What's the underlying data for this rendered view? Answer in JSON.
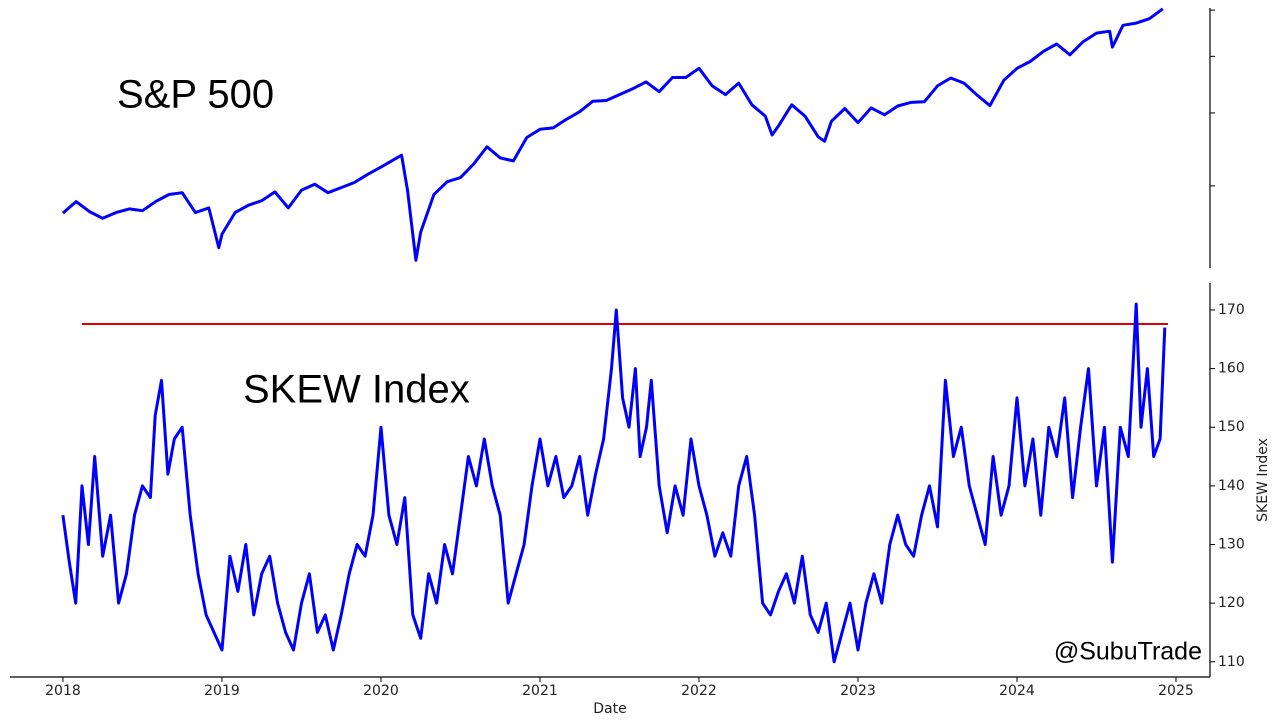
{
  "chart_data": [
    {
      "type": "line",
      "title": "S&P 500",
      "color": "#0000ff",
      "log_scale": true,
      "xlim": [
        2017.667,
        2025.214
      ],
      "ylim": [
        2170,
        6050
      ],
      "yticks": [
        3000,
        4000,
        5000,
        6000
      ],
      "x": [
        2018.0,
        2018.083,
        2018.167,
        2018.25,
        2018.333,
        2018.417,
        2018.5,
        2018.583,
        2018.667,
        2018.75,
        2018.833,
        2018.917,
        2018.98,
        2019.0,
        2019.083,
        2019.167,
        2019.25,
        2019.333,
        2019.417,
        2019.5,
        2019.583,
        2019.667,
        2019.75,
        2019.833,
        2019.917,
        2020.0,
        2020.083,
        2020.13,
        2020.167,
        2020.22,
        2020.25,
        2020.333,
        2020.417,
        2020.5,
        2020.583,
        2020.667,
        2020.75,
        2020.833,
        2020.917,
        2021.0,
        2021.083,
        2021.167,
        2021.25,
        2021.333,
        2021.417,
        2021.5,
        2021.583,
        2021.667,
        2021.75,
        2021.833,
        2021.917,
        2022.0,
        2022.083,
        2022.167,
        2022.25,
        2022.333,
        2022.417,
        2022.46,
        2022.5,
        2022.583,
        2022.667,
        2022.75,
        2022.79,
        2022.833,
        2022.917,
        2023.0,
        2023.083,
        2023.167,
        2023.25,
        2023.333,
        2023.417,
        2023.5,
        2023.583,
        2023.667,
        2023.75,
        2023.83,
        2023.917,
        2024.0,
        2024.083,
        2024.167,
        2024.25,
        2024.333,
        2024.417,
        2024.5,
        2024.583,
        2024.6,
        2024.667,
        2024.75,
        2024.833,
        2024.917
      ],
      "values": [
        2695,
        2820,
        2710,
        2640,
        2700,
        2740,
        2720,
        2820,
        2900,
        2920,
        2700,
        2750,
        2351,
        2480,
        2700,
        2780,
        2830,
        2930,
        2750,
        2950,
        3020,
        2920,
        2980,
        3040,
        3140,
        3230,
        3330,
        3386,
        2950,
        2237,
        2500,
        2900,
        3050,
        3100,
        3270,
        3500,
        3350,
        3310,
        3630,
        3750,
        3770,
        3900,
        4020,
        4190,
        4200,
        4300,
        4400,
        4520,
        4350,
        4600,
        4600,
        4770,
        4450,
        4300,
        4500,
        4130,
        3950,
        3667,
        3800,
        4130,
        3950,
        3640,
        3577,
        3870,
        4070,
        3850,
        4080,
        3970,
        4110,
        4170,
        4180,
        4450,
        4590,
        4500,
        4290,
        4117,
        4550,
        4770,
        4900,
        5100,
        5250,
        5030,
        5300,
        5480,
        5520,
        5186,
        5650,
        5700,
        5800,
        6030
      ]
    },
    {
      "type": "line",
      "title": "SKEW Index",
      "ylabel": "SKEW Index",
      "xlabel": "Date",
      "annotation": "@SubuTrade",
      "color": "#0000ff",
      "xlim": [
        2017.667,
        2025.214
      ],
      "ylim": [
        107.4,
        174.6
      ],
      "xticks": [
        2018,
        2019,
        2020,
        2021,
        2022,
        2023,
        2024,
        2025
      ],
      "yticks": [
        110,
        120,
        130,
        140,
        150,
        160,
        170
      ],
      "hline": {
        "value": 167.6,
        "x": [
          2018.12,
          2024.95
        ],
        "color": "#e00000"
      },
      "x": [
        2018.0,
        2018.04,
        2018.08,
        2018.12,
        2018.16,
        2018.2,
        2018.25,
        2018.3,
        2018.35,
        2018.4,
        2018.45,
        2018.5,
        2018.55,
        2018.58,
        2018.62,
        2018.66,
        2018.7,
        2018.75,
        2018.8,
        2018.85,
        2018.9,
        2018.95,
        2019.0,
        2019.05,
        2019.1,
        2019.15,
        2019.2,
        2019.25,
        2019.3,
        2019.35,
        2019.4,
        2019.45,
        2019.5,
        2019.55,
        2019.6,
        2019.65,
        2019.7,
        2019.75,
        2019.8,
        2019.85,
        2019.9,
        2019.95,
        2020.0,
        2020.05,
        2020.1,
        2020.15,
        2020.2,
        2020.25,
        2020.3,
        2020.35,
        2020.4,
        2020.45,
        2020.5,
        2020.55,
        2020.6,
        2020.65,
        2020.7,
        2020.75,
        2020.8,
        2020.85,
        2020.9,
        2020.95,
        2021.0,
        2021.05,
        2021.1,
        2021.15,
        2021.2,
        2021.25,
        2021.3,
        2021.35,
        2021.4,
        2021.45,
        2021.48,
        2021.52,
        2021.56,
        2021.6,
        2021.63,
        2021.67,
        2021.7,
        2021.75,
        2021.8,
        2021.85,
        2021.9,
        2021.95,
        2022.0,
        2022.05,
        2022.1,
        2022.15,
        2022.2,
        2022.25,
        2022.3,
        2022.35,
        2022.4,
        2022.45,
        2022.5,
        2022.55,
        2022.6,
        2022.65,
        2022.7,
        2022.75,
        2022.8,
        2022.85,
        2022.9,
        2022.95,
        2023.0,
        2023.05,
        2023.1,
        2023.15,
        2023.2,
        2023.25,
        2023.3,
        2023.35,
        2023.4,
        2023.45,
        2023.5,
        2023.55,
        2023.6,
        2023.65,
        2023.7,
        2023.75,
        2023.8,
        2023.85,
        2023.9,
        2023.95,
        2024.0,
        2024.05,
        2024.1,
        2024.15,
        2024.2,
        2024.25,
        2024.3,
        2024.35,
        2024.4,
        2024.45,
        2024.5,
        2024.55,
        2024.6,
        2024.65,
        2024.7,
        2024.75,
        2024.78,
        2024.82,
        2024.86,
        2024.9,
        2024.93
      ],
      "values": [
        135,
        127,
        120,
        140,
        130,
        145,
        128,
        135,
        120,
        125,
        135,
        140,
        138,
        152,
        158,
        142,
        148,
        150,
        135,
        125,
        118,
        115,
        112,
        128,
        122,
        130,
        118,
        125,
        128,
        120,
        115,
        112,
        120,
        125,
        115,
        118,
        112,
        118,
        125,
        130,
        128,
        135,
        150,
        135,
        130,
        138,
        118,
        114,
        125,
        120,
        130,
        125,
        135,
        145,
        140,
        148,
        140,
        135,
        120,
        125,
        130,
        140,
        148,
        140,
        145,
        138,
        140,
        145,
        135,
        142,
        148,
        160,
        170,
        155,
        150,
        160,
        145,
        150,
        158,
        140,
        132,
        140,
        135,
        148,
        140,
        135,
        128,
        132,
        128,
        140,
        145,
        135,
        120,
        118,
        122,
        125,
        120,
        128,
        118,
        115,
        120,
        110,
        115,
        120,
        112,
        120,
        125,
        120,
        130,
        135,
        130,
        128,
        135,
        140,
        133,
        158,
        145,
        150,
        140,
        135,
        130,
        145,
        135,
        140,
        155,
        140,
        148,
        135,
        150,
        145,
        155,
        138,
        150,
        160,
        140,
        150,
        127,
        150,
        145,
        171,
        150,
        160,
        145,
        148,
        167
      ]
    }
  ]
}
